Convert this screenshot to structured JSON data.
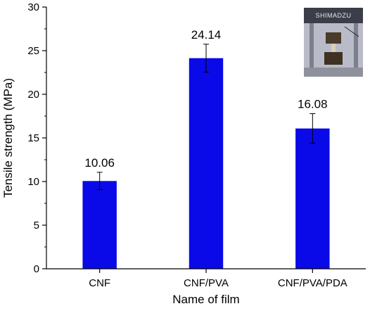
{
  "chart_data": {
    "type": "bar",
    "title": "",
    "xlabel": "Name of film",
    "ylabel": "Tensile strength (MPa)",
    "categories": [
      "CNF",
      "CNF/PVA",
      "CNF/PVA/PDA"
    ],
    "values": [
      10.06,
      24.14,
      16.08
    ],
    "error": [
      1.0,
      1.6,
      1.7
    ],
    "data_labels": [
      "10.06",
      "24.14",
      "16.08"
    ],
    "ylim": [
      0,
      30
    ],
    "yticks": [
      "0",
      "5",
      "10",
      "15",
      "20",
      "25",
      "30"
    ],
    "bar_color": "#0a0ae8",
    "grid": false,
    "legend": "none"
  },
  "inset_photo": {
    "brand_text": "SHIMADZU",
    "description_icon": "tensile-testing-machine-photo"
  }
}
